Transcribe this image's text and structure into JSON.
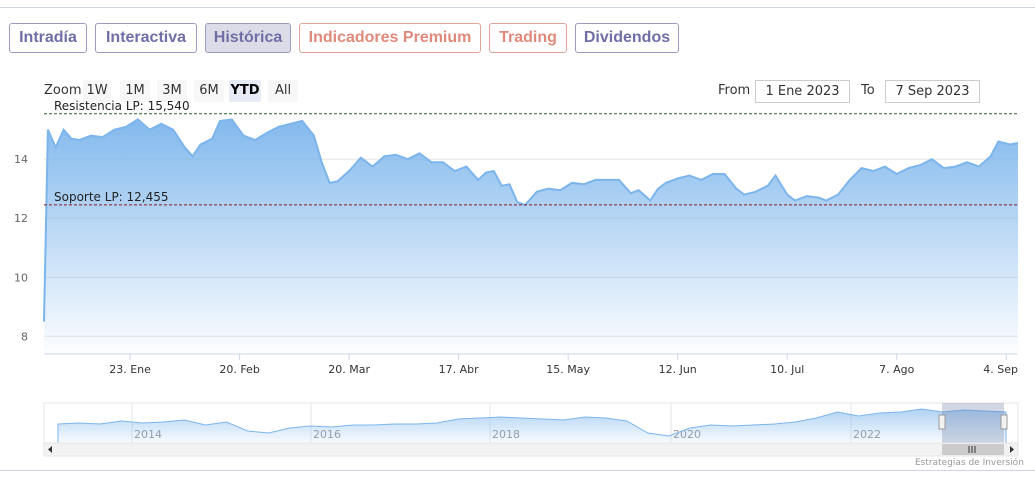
{
  "tabs": [
    {
      "label": "Intradía",
      "style": "normal"
    },
    {
      "label": "Interactiva",
      "style": "normal"
    },
    {
      "label": "Histórica",
      "style": "active"
    },
    {
      "label": "Indicadores Premium",
      "style": "red"
    },
    {
      "label": "Trading",
      "style": "red"
    },
    {
      "label": "Dividendos",
      "style": "normal"
    }
  ],
  "toolbar": {
    "zoom_label": "Zoom",
    "zoom_buttons": [
      "1W",
      "1M",
      "3M",
      "6M",
      "YTD",
      "All"
    ],
    "zoom_selected": "YTD",
    "from_label": "From",
    "from_value": "1 Ene 2023",
    "to_label": "To",
    "to_value": "7 Sep 2023"
  },
  "credit": "Estrategias de Inversión",
  "colors": {
    "line": "#7cb5ec",
    "fill_top": "#7cb5ec",
    "grid": "#e6e6e6",
    "resistance": "#2e5d2e",
    "support": "#8b1a1a"
  },
  "chart_data": {
    "type": "area",
    "x_start": "2023-01-01",
    "x_end": "2023-09-07",
    "ylim": [
      7.4,
      15.6
    ],
    "y_ticks": [
      8,
      10,
      12,
      14
    ],
    "x_ticks": [
      {
        "label": "23. Ene",
        "date": "2023-01-23"
      },
      {
        "label": "20. Feb",
        "date": "2023-02-20"
      },
      {
        "label": "20. Mar",
        "date": "2023-03-20"
      },
      {
        "label": "17. Abr",
        "date": "2023-04-17"
      },
      {
        "label": "15. May",
        "date": "2023-05-15"
      },
      {
        "label": "12. Jun",
        "date": "2023-06-12"
      },
      {
        "label": "10. Jul",
        "date": "2023-07-10"
      },
      {
        "label": "7. Ago",
        "date": "2023-08-07"
      },
      {
        "label": "4. Sep",
        "date": "2023-09-04"
      }
    ],
    "reference_lines": [
      {
        "label": "Resistencia LP: 15,540",
        "value": 15.54,
        "style": "dashed",
        "color": "resistance"
      },
      {
        "label": "Soporte LP: 12,455",
        "value": 12.455,
        "style": "dashed",
        "color": "support"
      }
    ],
    "series": [
      {
        "points": [
          [
            "2023-01-02",
            15.0
          ],
          [
            "2023-01-04",
            14.4
          ],
          [
            "2023-01-06",
            15.0
          ],
          [
            "2023-01-08",
            14.7
          ],
          [
            "2023-01-10",
            14.65
          ],
          [
            "2023-01-13",
            14.8
          ],
          [
            "2023-01-16",
            14.75
          ],
          [
            "2023-01-19",
            15.0
          ],
          [
            "2023-01-22",
            15.1
          ],
          [
            "2023-01-25",
            15.35
          ],
          [
            "2023-01-28",
            15.0
          ],
          [
            "2023-01-31",
            15.2
          ],
          [
            "2023-02-03",
            15.0
          ],
          [
            "2023-02-06",
            14.4
          ],
          [
            "2023-02-08",
            14.1
          ],
          [
            "2023-02-10",
            14.5
          ],
          [
            "2023-02-13",
            14.7
          ],
          [
            "2023-02-15",
            15.3
          ],
          [
            "2023-02-18",
            15.35
          ],
          [
            "2023-02-21",
            14.8
          ],
          [
            "2023-02-24",
            14.65
          ],
          [
            "2023-02-27",
            14.9
          ],
          [
            "2023-03-02",
            15.1
          ],
          [
            "2023-03-05",
            15.2
          ],
          [
            "2023-03-08",
            15.3
          ],
          [
            "2023-03-11",
            14.8
          ],
          [
            "2023-03-13",
            13.9
          ],
          [
            "2023-03-15",
            13.2
          ],
          [
            "2023-03-17",
            13.25
          ],
          [
            "2023-03-20",
            13.6
          ],
          [
            "2023-03-23",
            14.05
          ],
          [
            "2023-03-26",
            13.75
          ],
          [
            "2023-03-29",
            14.1
          ],
          [
            "2023-04-01",
            14.15
          ],
          [
            "2023-04-04",
            14.0
          ],
          [
            "2023-04-07",
            14.2
          ],
          [
            "2023-04-10",
            13.9
          ],
          [
            "2023-04-13",
            13.9
          ],
          [
            "2023-04-16",
            13.6
          ],
          [
            "2023-04-19",
            13.75
          ],
          [
            "2023-04-22",
            13.3
          ],
          [
            "2023-04-24",
            13.55
          ],
          [
            "2023-04-26",
            13.6
          ],
          [
            "2023-04-28",
            13.1
          ],
          [
            "2023-04-30",
            13.15
          ],
          [
            "2023-05-02",
            12.55
          ],
          [
            "2023-05-04",
            12.45
          ],
          [
            "2023-05-07",
            12.9
          ],
          [
            "2023-05-10",
            13.0
          ],
          [
            "2023-05-13",
            12.95
          ],
          [
            "2023-05-16",
            13.2
          ],
          [
            "2023-05-19",
            13.15
          ],
          [
            "2023-05-22",
            13.3
          ],
          [
            "2023-05-25",
            13.3
          ],
          [
            "2023-05-28",
            13.3
          ],
          [
            "2023-05-31",
            12.85
          ],
          [
            "2023-06-02",
            12.95
          ],
          [
            "2023-06-05",
            12.6
          ],
          [
            "2023-06-07",
            13.0
          ],
          [
            "2023-06-09",
            13.2
          ],
          [
            "2023-06-12",
            13.35
          ],
          [
            "2023-06-15",
            13.45
          ],
          [
            "2023-06-18",
            13.3
          ],
          [
            "2023-06-21",
            13.5
          ],
          [
            "2023-06-24",
            13.5
          ],
          [
            "2023-06-27",
            13.0
          ],
          [
            "2023-06-29",
            12.8
          ],
          [
            "2023-07-02",
            12.9
          ],
          [
            "2023-07-05",
            13.1
          ],
          [
            "2023-07-07",
            13.45
          ],
          [
            "2023-07-10",
            12.8
          ],
          [
            "2023-07-12",
            12.6
          ],
          [
            "2023-07-15",
            12.75
          ],
          [
            "2023-07-18",
            12.7
          ],
          [
            "2023-07-20",
            12.6
          ],
          [
            "2023-07-23",
            12.8
          ],
          [
            "2023-07-26",
            13.3
          ],
          [
            "2023-07-29",
            13.7
          ],
          [
            "2023-08-01",
            13.6
          ],
          [
            "2023-08-04",
            13.75
          ],
          [
            "2023-08-07",
            13.5
          ],
          [
            "2023-08-10",
            13.7
          ],
          [
            "2023-08-13",
            13.8
          ],
          [
            "2023-08-16",
            14.0
          ],
          [
            "2023-08-19",
            13.7
          ],
          [
            "2023-08-22",
            13.75
          ],
          [
            "2023-08-25",
            13.9
          ],
          [
            "2023-08-28",
            13.75
          ],
          [
            "2023-08-31",
            14.1
          ],
          [
            "2023-09-02",
            14.6
          ],
          [
            "2023-09-05",
            14.5
          ],
          [
            "2023-09-07",
            14.55
          ]
        ]
      }
    ],
    "navigator": {
      "x_labels": [
        "2014",
        "2016",
        "2018",
        "2020",
        "2022"
      ]
    }
  }
}
